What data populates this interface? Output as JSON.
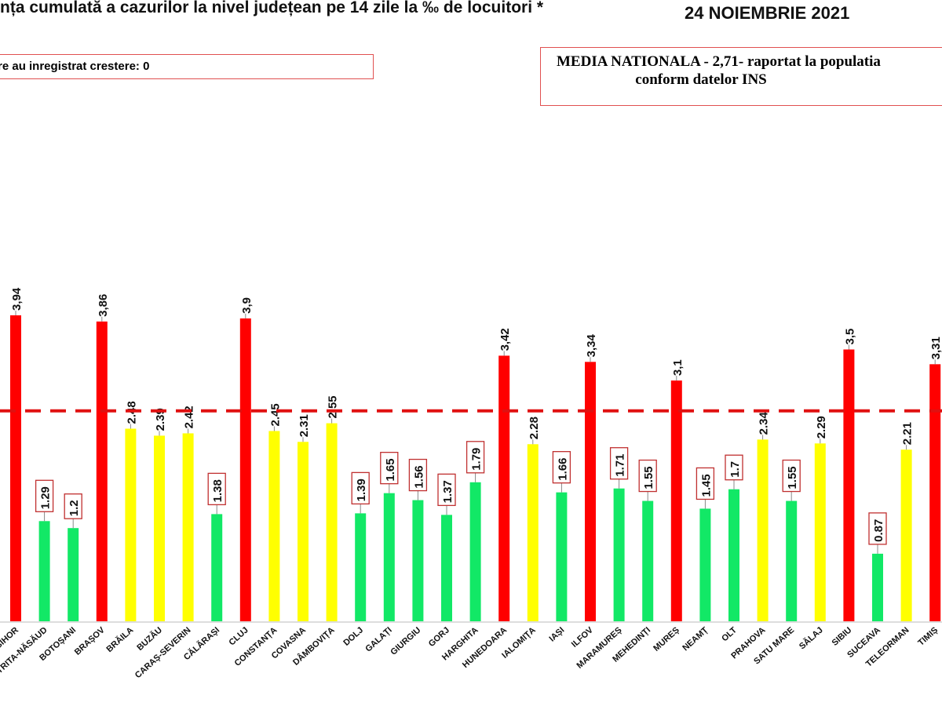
{
  "header": {
    "title": "nța cumulată a cazurilor la nivel județean pe 14 zile la ‰ de locuitori *",
    "date": "24 NOIEMBRIE 2021",
    "increase_note": "re au inregistrat crestere: 0",
    "national_line1": "MEDIA NATIONALA - 2,71-  raportat la populatia",
    "national_line2": "conform datelor INS"
  },
  "chart_data": {
    "type": "bar",
    "title": "",
    "ylim": [
      0,
      4.2
    ],
    "reference_line": {
      "value": 2.71,
      "style": "dashed",
      "color": "#e01010"
    },
    "colors": {
      "red": "#ff0000",
      "yellow": "#ffff00",
      "green": "#12e866"
    },
    "categories": [
      "BIHOR",
      "BISTRIȚA-NĂSĂUD",
      "BOTOȘANI",
      "BRAȘOV",
      "BRĂILA",
      "BUZĂU",
      "CARAȘ-SEVERIN",
      "CĂLĂRAȘI",
      "CLUJ",
      "CONSTANȚA",
      "COVASNA",
      "DÂMBOVIȚA",
      "DOLJ",
      "GALAȚI",
      "GIURGIU",
      "GORJ",
      "HARGHITA",
      "HUNEDOARA",
      "IALOMIȚA",
      "IAȘI",
      "ILFOV",
      "MARAMUREȘ",
      "MEHEDINȚI",
      "MUREȘ",
      "NEAMȚ",
      "OLT",
      "PRAHOVA",
      "SATU MARE",
      "SĂLAJ",
      "SIBIU",
      "SUCEAVA",
      "TELEORMAN",
      "TIMIȘ"
    ],
    "category_labels": [
      "BIHOR",
      "STRITA-NĂSĂUD",
      "BOTOȘANI",
      "BRAȘOV",
      "BRĂILA",
      "BUZĂU",
      "CARAȘ-SEVERIN",
      "CĂLĂRAȘI",
      "CLUJ",
      "CONSTANȚA",
      "COVASNA",
      "DÂMBOVIȚA",
      "DOLJ",
      "GALAȚI",
      "GIURGIU",
      "GORJ",
      "HARGHITA",
      "HUNEDOARA",
      "IALOMIȚA",
      "IAȘI",
      "ILFOV",
      "MARAMUREȘ",
      "MEHEDINȚI",
      "MUREȘ",
      "NEAMȚ",
      "OLT",
      "PRAHOVA",
      "SATU MARE",
      "SĂLAJ",
      "SIBIU",
      "SUCEAVA",
      "TELEORMAN",
      "TIMIȘ"
    ],
    "values": [
      3.94,
      1.29,
      1.2,
      3.86,
      2.48,
      2.39,
      2.42,
      1.38,
      3.9,
      2.45,
      2.31,
      2.55,
      1.39,
      1.65,
      1.56,
      1.37,
      1.79,
      3.42,
      2.28,
      1.66,
      3.34,
      1.71,
      1.55,
      3.1,
      1.45,
      1.7,
      2.34,
      1.55,
      2.29,
      3.5,
      0.87,
      2.21,
      3.31
    ],
    "data_labels": [
      "3,94",
      "1.29",
      "1.2",
      "3,86",
      "2.48",
      "2.39",
      "2.42",
      "1.38",
      "3,9",
      "2.45",
      "2.31",
      "2.55",
      "1.39",
      "1.65",
      "1.56",
      "1.37",
      "1.79",
      "3,42",
      "2.28",
      "1.66",
      "3,34",
      "1.71",
      "1.55",
      "3,1",
      "1.45",
      "1.7",
      "2.34",
      "1.55",
      "2.29",
      "3,5",
      "0.87",
      "2.21",
      "3,31"
    ],
    "bar_colors": [
      "red",
      "green",
      "green",
      "red",
      "yellow",
      "yellow",
      "yellow",
      "green",
      "red",
      "yellow",
      "yellow",
      "yellow",
      "green",
      "green",
      "green",
      "green",
      "green",
      "red",
      "yellow",
      "green",
      "red",
      "green",
      "green",
      "red",
      "green",
      "green",
      "yellow",
      "green",
      "yellow",
      "red",
      "green",
      "yellow",
      "red"
    ]
  }
}
